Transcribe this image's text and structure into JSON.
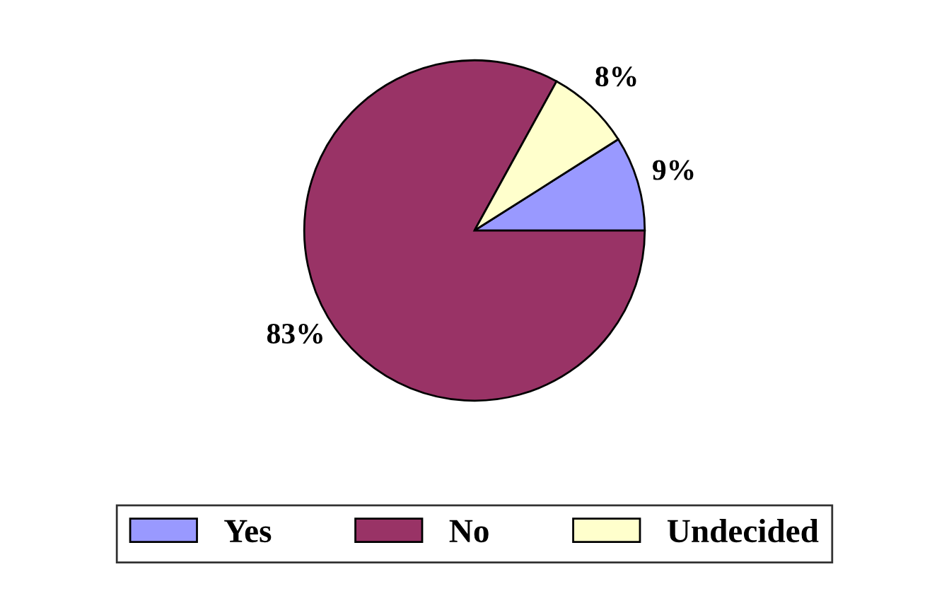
{
  "chart_data": {
    "type": "pie",
    "categories": [
      "Yes",
      "No",
      "Undecided"
    ],
    "values": [
      9,
      83,
      8
    ],
    "colors": [
      "#9999ff",
      "#993366",
      "#ffffcc"
    ],
    "value_labels": [
      "9%",
      "83%",
      "8%"
    ],
    "legend": "bottom"
  }
}
